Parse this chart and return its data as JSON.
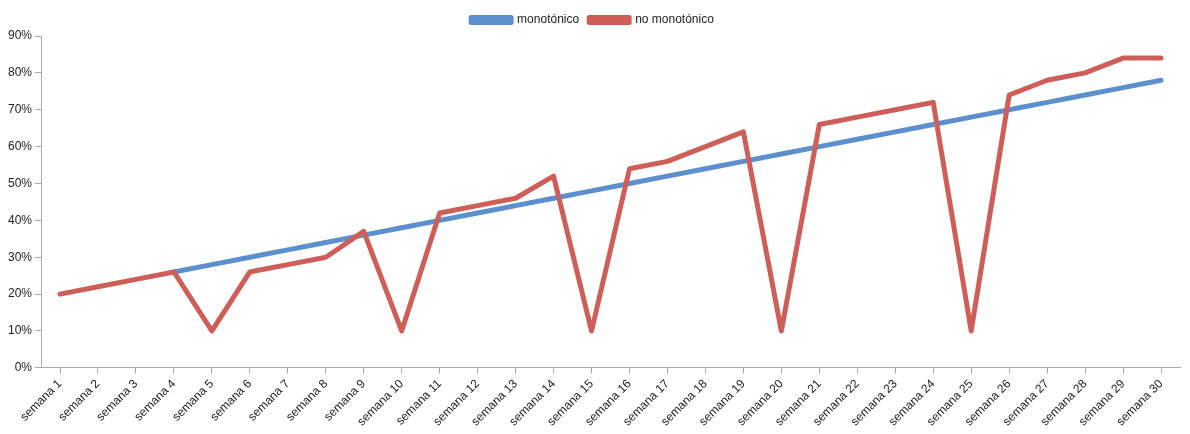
{
  "chart_data": {
    "type": "line",
    "categories": [
      "semana 1",
      "semana 2",
      "semana 3",
      "semana 4",
      "semana 5",
      "semana 6",
      "semana 7",
      "semana 8",
      "semana 9",
      "semana 10",
      "semana 11",
      "semana 12",
      "semana 13",
      "semana 14",
      "semana 15",
      "semana 16",
      "semana 17",
      "semana 18",
      "semana 19",
      "semana 20",
      "semana 21",
      "semana 22",
      "semana 23",
      "semana 24",
      "semana 25",
      "semana 26",
      "semana 27",
      "semana 28",
      "semana 29",
      "semana 30"
    ],
    "series": [
      {
        "name": "monotónico",
        "color": "#5b8fcd",
        "values": [
          null,
          null,
          null,
          26,
          28,
          30,
          32,
          34,
          36,
          38,
          40,
          42,
          44,
          46,
          48,
          50,
          52,
          54,
          56,
          58,
          60,
          62,
          64,
          66,
          68,
          70,
          72,
          74,
          76,
          78
        ]
      },
      {
        "name": "no monotónico",
        "color": "#d05e58",
        "values": [
          20,
          22,
          24,
          26,
          10,
          26,
          28,
          30,
          37,
          10,
          42,
          44,
          46,
          52,
          10,
          54,
          56,
          60,
          64,
          10,
          66,
          68,
          70,
          72,
          10,
          74,
          78,
          80,
          84,
          84
        ]
      }
    ],
    "ylim": [
      0,
      90
    ],
    "yticks": [
      {
        "value": 0,
        "label": "0%"
      },
      {
        "value": 10,
        "label": "10%"
      },
      {
        "value": 20,
        "label": "20%"
      },
      {
        "value": 30,
        "label": "30%"
      },
      {
        "value": 40,
        "label": "40%"
      },
      {
        "value": 50,
        "label": "50%"
      },
      {
        "value": 60,
        "label": "60%"
      },
      {
        "value": 70,
        "label": "70%"
      },
      {
        "value": 80,
        "label": "80%"
      },
      {
        "value": 90,
        "label": "90%"
      }
    ],
    "grid": false,
    "legend": "top",
    "marker": "none",
    "line_style": "solid"
  }
}
